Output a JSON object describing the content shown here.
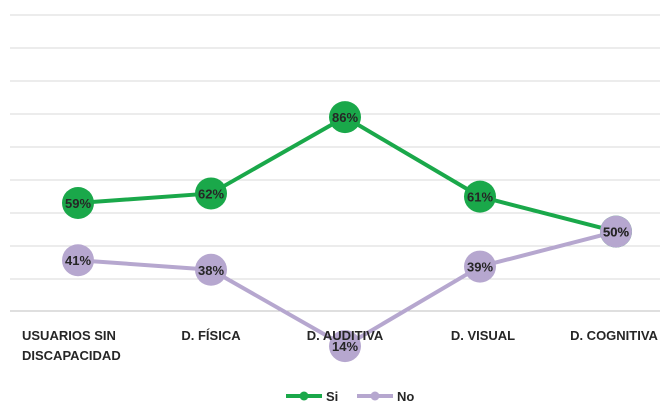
{
  "chart_data": {
    "type": "line",
    "categories": [
      [
        "USUARIOS SIN",
        "DISCAPACIDAD"
      ],
      [
        "D. FÍSICA"
      ],
      [
        "D. AUDITIVA"
      ],
      [
        "D. VISUAL"
      ],
      [
        "D. COGNITIVA"
      ]
    ],
    "series": [
      {
        "name": "Si",
        "color": "#1aa84a",
        "marker_color": "#1aa84a",
        "values": [
          59,
          62,
          86,
          61,
          50
        ],
        "labels": [
          "59%",
          "62%",
          "86%",
          "61%",
          "50%"
        ]
      },
      {
        "name": "No",
        "color": "#b6a7cf",
        "marker_color": "#b6a7cf",
        "values": [
          41,
          38,
          14,
          39,
          50
        ],
        "labels": [
          "41%",
          "38%",
          "14%",
          "39%",
          "50%"
        ]
      }
    ],
    "ylim": [
      0,
      90
    ],
    "grid": true,
    "legend": "bottom"
  }
}
